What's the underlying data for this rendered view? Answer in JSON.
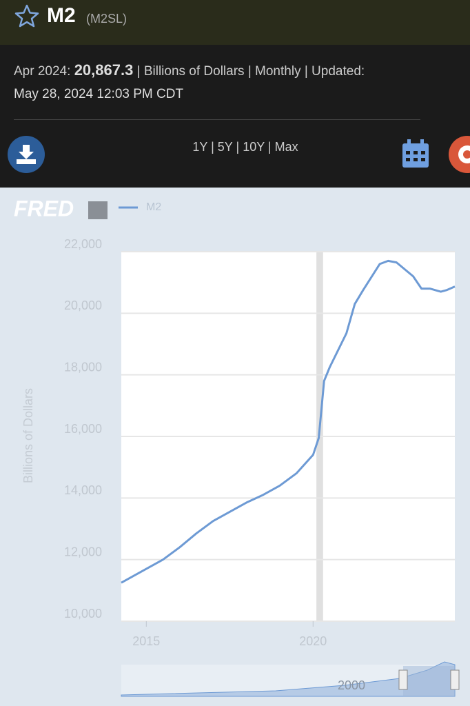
{
  "header": {
    "symbol": "M2",
    "series_id": "(M2SL)"
  },
  "info": {
    "date": "Apr 2024:",
    "value": "20,867.3",
    "details": "| Billions of Dollars | Monthly | Updated:",
    "updated": "May 28, 2024 12:03 PM CDT"
  },
  "ranges": [
    "1Y",
    "5Y",
    "10Y",
    "Max"
  ],
  "range_separator": "|",
  "chart_data": {
    "type": "line",
    "logo": "FRED",
    "ylabel": "Billions of Dollars",
    "x": [
      2014.25,
      2015.0,
      2015.5,
      2016.0,
      2016.5,
      2017.0,
      2017.5,
      2018.0,
      2018.5,
      2019.0,
      2019.5,
      2020.0,
      2020.17,
      2020.33,
      2020.5,
      2021.0,
      2021.25,
      2021.5,
      2022.0,
      2022.25,
      2022.5,
      2023.0,
      2023.25,
      2023.5,
      2023.83,
      2024.0,
      2024.25
    ],
    "series": [
      {
        "name": "M2",
        "color": "#6d9ad4",
        "values": [
          11250,
          11700,
          12000,
          12400,
          12850,
          13250,
          13550,
          13850,
          14100,
          14400,
          14800,
          15400,
          15950,
          17800,
          18250,
          19350,
          20300,
          20750,
          21600,
          21700,
          21650,
          21200,
          20800,
          20800,
          20700,
          20750,
          20867.3
        ]
      }
    ],
    "shaded": [
      [
        2020.1,
        2020.3
      ]
    ],
    "xlim": [
      2014.25,
      2024.25
    ],
    "xticks": [
      2015,
      2020
    ],
    "ylim": [
      10000,
      22000
    ],
    "yticks": [
      {
        "value": 10000,
        "label": "10,000"
      },
      {
        "value": 12000,
        "label": "12,000"
      },
      {
        "value": 14000,
        "label": "14,000"
      },
      {
        "value": 16000,
        "label": "16,000"
      },
      {
        "value": 18000,
        "label": "18,000"
      },
      {
        "value": 20000,
        "label": "20,000"
      },
      {
        "value": 22000,
        "label": "22,000"
      }
    ],
    "grid": true,
    "navigator_label": "2000"
  }
}
